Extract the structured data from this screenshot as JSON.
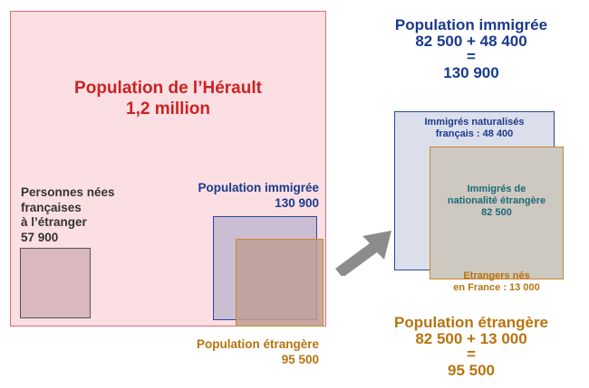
{
  "herault": {
    "title": "Population de l’Hérault",
    "value": "1,2 million"
  },
  "nees_etranger": {
    "lines": [
      "Personnes nées",
      "françaises",
      "à l’étranger",
      "57 900"
    ]
  },
  "immigree_small": {
    "label": "Population immigrée",
    "value": "130 900"
  },
  "etrangere_small": {
    "label": "Population étrangère",
    "value": "95 500"
  },
  "equation_immigree": {
    "title": "Population immigrée",
    "sum": "82 500 + 48 400",
    "equals": "=",
    "total": "130 900"
  },
  "naturalises": {
    "line1": "Immigrés naturalisés",
    "line2": "français : 48 400"
  },
  "nationalite_etrangere": {
    "line1": "Immigrés de",
    "line2": "nationalité étrangère",
    "line3": "82 500"
  },
  "etrangers_nes_france": {
    "line1": "Etrangers nés",
    "line2": "en France : 13 000"
  },
  "equation_etrangere": {
    "title": "Population étrangère",
    "sum": "82 500 + 13 000",
    "equals": "=",
    "total": "95 500"
  },
  "colors": {
    "herault_red": "#cc2222",
    "immigree_blue": "#1a3a8c",
    "etrangere_orange": "#b8730f",
    "arrow_gray": "#8c8c8c"
  }
}
